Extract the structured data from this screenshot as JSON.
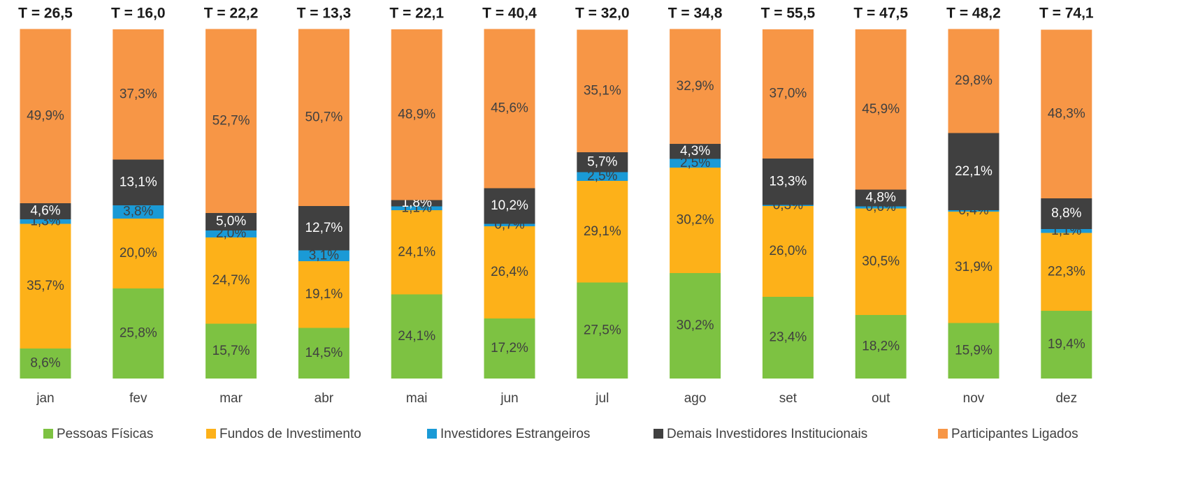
{
  "chart_data": {
    "type": "stacked_bar_100",
    "annotations": [
      "T = 26,5",
      "T = 16,0",
      "T = 22,2",
      "T = 13,3",
      "T = 22,1",
      "T = 40,4",
      "T = 32,0",
      "T = 34,8",
      "T = 55,5",
      "T = 47,5",
      "T = 48,2",
      "T = 74,1"
    ],
    "categories": [
      "jan",
      "fev",
      "mar",
      "abr",
      "mai",
      "jun",
      "jul",
      "ago",
      "set",
      "out",
      "nov",
      "dez"
    ],
    "ylim": [
      0,
      100
    ],
    "legend": "bottom",
    "series": [
      {
        "name": "Pessoas Físicas",
        "color": "#7dc242",
        "label_color": "#404040",
        "values": [
          8.6,
          25.8,
          15.7,
          14.5,
          24.1,
          17.2,
          27.5,
          30.2,
          23.4,
          18.2,
          15.9,
          19.4
        ],
        "value_labels": [
          "8,6%",
          "25,8%",
          "15,7%",
          "14,5%",
          "24,1%",
          "17,2%",
          "27,5%",
          "30,2%",
          "23,4%",
          "18,2%",
          "15,9%",
          "19,4%"
        ]
      },
      {
        "name": "Fundos de Investimento",
        "color": "#fdb119",
        "label_color": "#404040",
        "values": [
          35.7,
          20.0,
          24.7,
          19.1,
          24.1,
          26.4,
          29.1,
          30.2,
          26.0,
          30.5,
          31.9,
          22.3
        ],
        "value_labels": [
          "35,7%",
          "20,0%",
          "24,7%",
          "19,1%",
          "24,1%",
          "26,4%",
          "29,1%",
          "30,2%",
          "26,0%",
          "30,5%",
          "31,9%",
          "22,3%"
        ]
      },
      {
        "name": "Investidores Estrangeiros",
        "color": "#1a9ad6",
        "label_color": "#404040",
        "values": [
          1.3,
          3.8,
          2.0,
          3.1,
          1.1,
          0.7,
          2.5,
          2.5,
          0.3,
          0.6,
          0.4,
          1.1
        ],
        "value_labels": [
          "1,3%",
          "3,8%",
          "2,0%",
          "3,1%",
          "1,1%",
          "0,7%",
          "2,5%",
          "2,5%",
          "0,3%",
          "0,6%",
          "0,4%",
          "1,1%"
        ]
      },
      {
        "name": "Demais Investidores Institucionais",
        "color": "#404040",
        "label_color": "#ffffff",
        "values": [
          4.6,
          13.1,
          5.0,
          12.7,
          1.8,
          10.2,
          5.7,
          4.3,
          13.3,
          4.8,
          22.1,
          8.8
        ],
        "value_labels": [
          "4,6%",
          "13,1%",
          "5,0%",
          "12,7%",
          "1,8%",
          "10,2%",
          "5,7%",
          "4,3%",
          "13,3%",
          "4,8%",
          "22,1%",
          "8,8%"
        ]
      },
      {
        "name": "Participantes Ligados",
        "color": "#f79646",
        "label_color": "#404040",
        "values": [
          49.9,
          37.3,
          52.7,
          50.7,
          48.9,
          45.6,
          35.1,
          32.9,
          37.0,
          45.9,
          29.8,
          48.3
        ],
        "value_labels": [
          "49,9%",
          "37,3%",
          "52,7%",
          "50,7%",
          "48,9%",
          "45,6%",
          "35,1%",
          "32,9%",
          "37,0%",
          "45,9%",
          "29,8%",
          "48,3%"
        ]
      }
    ]
  }
}
